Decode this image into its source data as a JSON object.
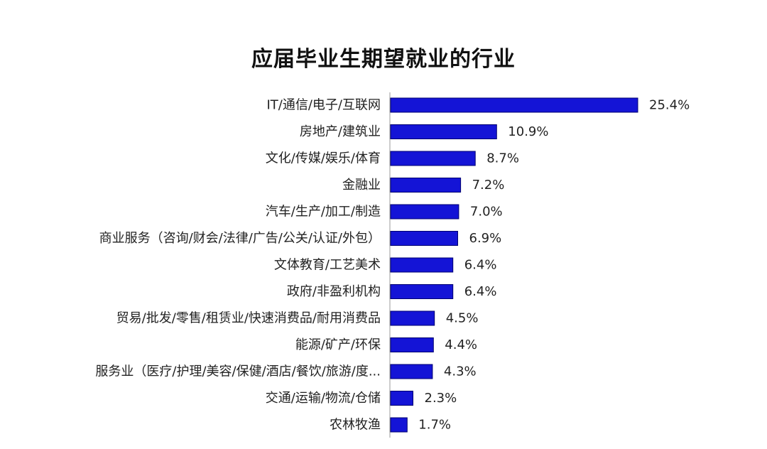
{
  "chart_data": {
    "type": "bar",
    "orientation": "horizontal",
    "title": "应届毕业生期望就业的行业",
    "categories": [
      "IT/通信/电子/互联网",
      "房地产/建筑业",
      "文化/传媒/娱乐/体育",
      "金融业",
      "汽车/生产/加工/制造",
      "商业服务（咨询/财会/法律/广告/公关/认证/外包）",
      "文体教育/工艺美术",
      "政府/非盈利机构",
      "贸易/批发/零售/租赁业/快速消费品/耐用消费品",
      "能源/矿产/环保",
      "服务业（医疗/护理/美容/保健/酒店/餐饮/旅游/度...",
      "交通/运输/物流/仓储",
      "农林牧渔"
    ],
    "values": [
      25.4,
      10.9,
      8.7,
      7.2,
      7.0,
      6.9,
      6.4,
      6.4,
      4.5,
      4.4,
      4.3,
      2.3,
      1.7
    ],
    "value_labels": [
      "25.4%",
      "10.9%",
      "8.7%",
      "7.2%",
      "7.0%",
      "6.9%",
      "6.4%",
      "6.4%",
      "4.5%",
      "4.4%",
      "4.3%",
      "2.3%",
      "1.7%"
    ],
    "unit": "%",
    "xlim": [
      0,
      25.4
    ],
    "grid": false,
    "legend": "none",
    "bar_color": "#1414d6",
    "bar_edge_color": "#000070"
  }
}
